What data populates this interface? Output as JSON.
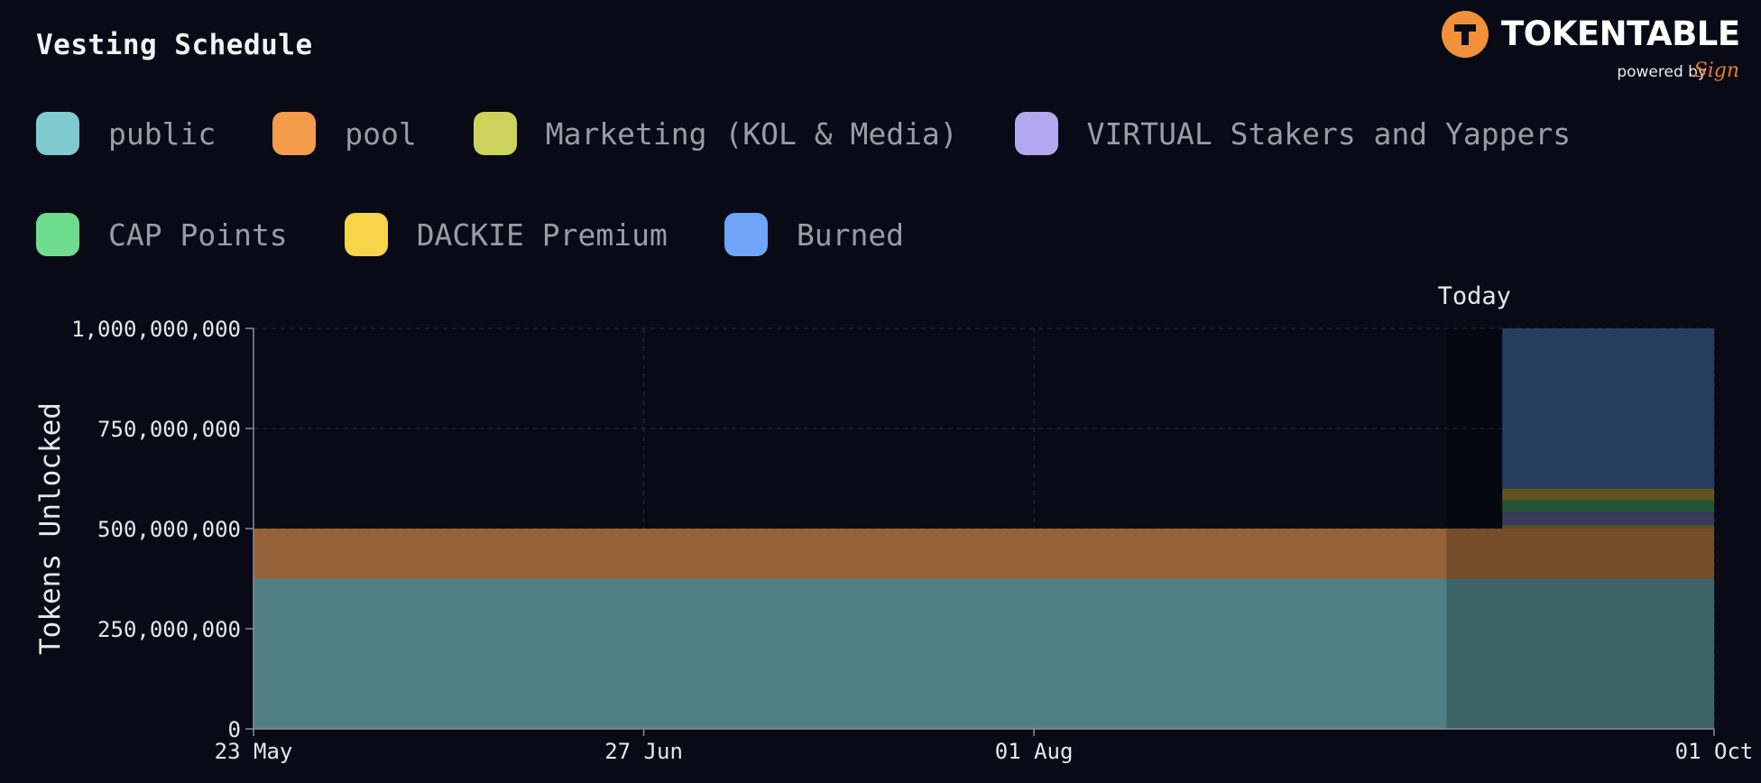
{
  "header": {
    "title": "Vesting Schedule"
  },
  "brand": {
    "name": "TOKENTABLE",
    "powered_by": "powered by",
    "sign": "Sign",
    "accent": "#f2903a"
  },
  "colors": {
    "background": "#080b16",
    "grid": "#2a2d38",
    "axis": "#8a8d96",
    "today_shade": "#000000"
  },
  "chart_data": {
    "type": "area",
    "stacked": true,
    "title": "",
    "ylabel": "Tokens Unlocked",
    "xlabel": "",
    "x_range": [
      "2025-05-23",
      "2025-10-01"
    ],
    "x_ticks": [
      "23 May",
      "27 Jun",
      "01 Aug",
      "01 Oct"
    ],
    "x_tick_dates": [
      "2025-05-23",
      "2025-06-27",
      "2025-08-01",
      "2025-10-01"
    ],
    "ylim": [
      0,
      1000000000
    ],
    "y_ticks": [
      "0",
      "250,000,000",
      "500,000,000",
      "750,000,000",
      "1,000,000,000"
    ],
    "y_tick_values": [
      0,
      250000000,
      500000000,
      750000000,
      1000000000
    ],
    "today_label": "Today",
    "today_date": "2025-09-07",
    "today_end_date": "2025-09-12",
    "grid": true,
    "legend_position": "top",
    "series": [
      {
        "name": "public",
        "color": "#7fcbd0",
        "fill": "#4f7f84",
        "points": [
          {
            "x": "2025-05-23",
            "y": 375000000
          },
          {
            "x": "2025-10-01",
            "y": 375000000
          }
        ]
      },
      {
        "name": "pool",
        "color": "#f49b4c",
        "fill": "#956237",
        "points": [
          {
            "x": "2025-05-23",
            "y": 125000000
          },
          {
            "x": "2025-10-01",
            "y": 125000000
          }
        ]
      },
      {
        "name": "Marketing (KOL & Media)",
        "color": "#cbd35a",
        "fill": "#6b6a2e",
        "points": [
          {
            "x": "2025-05-23",
            "y": 0
          },
          {
            "x": "2025-09-12",
            "y": 0
          },
          {
            "x": "2025-09-12",
            "y": 10000000
          },
          {
            "x": "2025-10-01",
            "y": 10000000
          }
        ]
      },
      {
        "name": "VIRTUAL Stakers and Yappers",
        "color": "#b3a8ef",
        "fill": "#4a4a77",
        "points": [
          {
            "x": "2025-05-23",
            "y": 0
          },
          {
            "x": "2025-09-12",
            "y": 0
          },
          {
            "x": "2025-09-12",
            "y": 30000000
          },
          {
            "x": "2025-10-01",
            "y": 30000000
          }
        ]
      },
      {
        "name": "CAP Points",
        "color": "#6edb8e",
        "fill": "#2f6b46",
        "points": [
          {
            "x": "2025-05-23",
            "y": 0
          },
          {
            "x": "2025-09-12",
            "y": 0
          },
          {
            "x": "2025-09-12",
            "y": 30000000
          },
          {
            "x": "2025-10-01",
            "y": 30000000
          }
        ]
      },
      {
        "name": "DACKIE Premium",
        "color": "#f7d44a",
        "fill": "#7d6c2c",
        "points": [
          {
            "x": "2025-05-23",
            "y": 0
          },
          {
            "x": "2025-09-12",
            "y": 0
          },
          {
            "x": "2025-09-12",
            "y": 30000000
          },
          {
            "x": "2025-10-01",
            "y": 30000000
          }
        ]
      },
      {
        "name": "Burned",
        "color": "#6fa4f8",
        "fill": "#33507c",
        "points": [
          {
            "x": "2025-05-23",
            "y": 0
          },
          {
            "x": "2025-09-12",
            "y": 0
          },
          {
            "x": "2025-09-12",
            "y": 400000000
          },
          {
            "x": "2025-10-01",
            "y": 400000000
          }
        ]
      }
    ]
  }
}
